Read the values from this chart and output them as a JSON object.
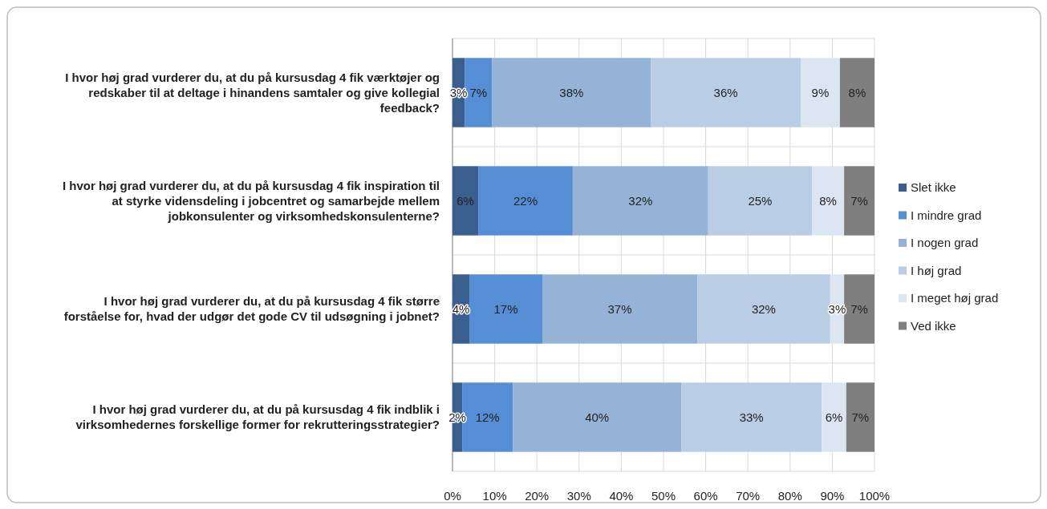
{
  "chart_data": {
    "type": "bar",
    "orientation": "horizontal",
    "stacked": true,
    "categories": [
      "I hvor høj grad vurderer du, at du på kursusdag 4 fik værktøjer og redskaber til at deltage i hinandens samtaler og give kollegial feedback?",
      "I hvor høj grad vurderer du, at du på kursusdag 4 fik inspiration til at styrke vidensdeling i jobcentret og samarbejde mellem jobkonsulenter og virksomhedskonsulenterne?",
      "I hvor høj grad vurderer du, at du på kursusdag 4 fik større forståelse for, hvad der udgør det gode CV til udsøgning i jobnet?",
      "I hvor høj grad vurderer du, at du på kursusdag 4 fik indblik i virksomhedernes forskellige former for rekrutteringsstrategier?"
    ],
    "series": [
      {
        "name": "Slet ikke",
        "color": "#3a5f8f",
        "values": [
          2.9,
          6.1,
          4.0,
          2.3
        ],
        "value_labels": [
          "3%",
          "6%",
          "4%",
          "2%"
        ]
      },
      {
        "name": "I mindre grad",
        "color": "#558ed5",
        "values": [
          6.5,
          22.4,
          17.3,
          12.0
        ],
        "value_labels": [
          "7%",
          "22%",
          "17%",
          "12%"
        ]
      },
      {
        "name": "I nogen grad",
        "color": "#95b3d7",
        "values": [
          37.6,
          32.1,
          36.7,
          39.9
        ],
        "value_labels": [
          "38%",
          "32%",
          "37%",
          "40%"
        ]
      },
      {
        "name": "I høj grad",
        "color": "#b9cde5",
        "values": [
          35.5,
          24.6,
          31.5,
          33.3
        ],
        "value_labels": [
          "36%",
          "25%",
          "32%",
          "33%"
        ]
      },
      {
        "name": "I meget høj grad",
        "color": "#dce6f2",
        "values": [
          9.3,
          7.6,
          3.3,
          5.8
        ],
        "value_labels": [
          "9%",
          "8%",
          "3%",
          "6%"
        ]
      },
      {
        "name": "Ved ikke",
        "color": "#7f7f7f",
        "values": [
          8.2,
          7.2,
          7.2,
          6.7
        ],
        "value_labels": [
          "8%",
          "7%",
          "7%",
          "7%"
        ]
      }
    ],
    "xlim": [
      0,
      100
    ],
    "xticks": [
      {
        "value": 0,
        "label": "0%"
      },
      {
        "value": 10,
        "label": "10%"
      },
      {
        "value": 20,
        "label": "20%"
      },
      {
        "value": 30,
        "label": "30%"
      },
      {
        "value": 40,
        "label": "40%"
      },
      {
        "value": 50,
        "label": "50%"
      },
      {
        "value": 60,
        "label": "60%"
      },
      {
        "value": 70,
        "label": "70%"
      },
      {
        "value": 80,
        "label": "80%"
      },
      {
        "value": 90,
        "label": "90%"
      },
      {
        "value": 100,
        "label": "100%"
      }
    ],
    "grid": true,
    "legend": "right"
  }
}
